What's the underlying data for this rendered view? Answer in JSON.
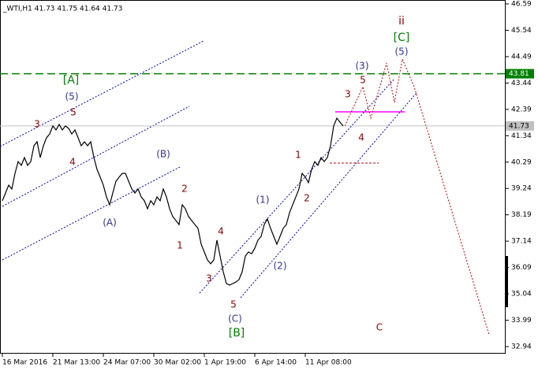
{
  "chart_data": {
    "type": "line",
    "title": "_WTI,H1  41.73 41.75 41.64 41.73",
    "categories": [
      "16 Mar 2016",
      null,
      null,
      null,
      null,
      null,
      null,
      null,
      null,
      null,
      null,
      null,
      null,
      null,
      null,
      null,
      "21 Mar 13:00",
      null,
      null,
      null,
      null,
      null,
      null,
      null,
      null,
      null,
      null,
      null,
      null,
      null,
      null,
      null,
      "24 Mar 07:00",
      null,
      null,
      null,
      null,
      null,
      null,
      null,
      null,
      null,
      null,
      null,
      null,
      null,
      null,
      null,
      "30 Mar 02:00",
      null,
      null,
      null,
      null,
      null,
      null,
      null,
      null,
      null,
      null,
      null,
      null,
      null,
      null,
      null,
      "1 Apr 19:00",
      null,
      null,
      null,
      null,
      null,
      null,
      null,
      null,
      null,
      null,
      null,
      null,
      null,
      null,
      null,
      "6 Apr 14:00",
      null,
      null,
      null,
      null,
      null,
      null,
      null,
      null,
      null,
      null,
      null,
      null,
      null,
      null,
      null,
      "11 Apr 08:00",
      null,
      null,
      null,
      null,
      null,
      null,
      null,
      null,
      null,
      null,
      null,
      null
    ],
    "values": [
      38.75,
      39.06,
      39.37,
      39.22,
      39.84,
      40.31,
      40.16,
      40.47,
      40.16,
      40.31,
      40.94,
      41.1,
      40.47,
      40.94,
      41.26,
      41.41,
      41.73,
      41.57,
      41.79,
      41.57,
      41.73,
      41.63,
      41.41,
      41.57,
      41.26,
      40.94,
      41.1,
      40.94,
      41.1,
      40.47,
      40.0,
      39.69,
      39.37,
      38.9,
      38.59,
      39.06,
      39.53,
      39.69,
      39.84,
      39.84,
      39.53,
      39.22,
      39.06,
      39.22,
      38.9,
      38.75,
      38.43,
      38.75,
      38.59,
      38.9,
      38.75,
      39.22,
      38.9,
      38.43,
      38.12,
      37.96,
      37.8,
      38.59,
      38.43,
      38.12,
      37.96,
      37.8,
      37.65,
      37.02,
      36.71,
      36.39,
      36.24,
      36.39,
      37.18,
      36.55,
      35.92,
      35.45,
      35.39,
      35.45,
      35.51,
      35.61,
      35.92,
      36.55,
      36.71,
      36.64,
      36.86,
      37.18,
      37.33,
      37.8,
      38.02,
      37.65,
      37.33,
      37.02,
      37.33,
      37.65,
      37.8,
      38.27,
      38.59,
      38.9,
      39.22,
      39.84,
      39.69,
      39.47,
      40.0,
      40.31,
      40.16,
      40.47,
      40.31,
      40.47,
      40.94,
      41.73,
      42.04,
      41.88,
      41.73
    ],
    "color": "#000000",
    "ylim": [
      32.94,
      46.59
    ],
    "yticks": [
      46.59,
      45.54,
      44.49,
      43.44,
      42.39,
      41.34,
      40.29,
      39.24,
      38.19,
      37.14,
      36.09,
      35.04,
      33.99,
      32.94
    ],
    "hlines": [
      {
        "value": 43.81,
        "color": "#008000"
      },
      {
        "value": 41.73,
        "color": "#c0c0c0"
      }
    ],
    "annotations": [
      {
        "text": "[A]",
        "color": "#008000"
      },
      {
        "text": "(5)",
        "color": "#333399"
      },
      {
        "text": "5",
        "color": "#8b0000"
      },
      {
        "text": "3",
        "color": "#8b0000"
      },
      {
        "text": "4",
        "color": "#8b0000"
      },
      {
        "text": "(A)",
        "color": "#333399"
      },
      {
        "text": "(B)",
        "color": "#333399"
      },
      {
        "text": "2",
        "color": "#8b0000"
      },
      {
        "text": "1",
        "color": "#8b0000"
      },
      {
        "text": "4",
        "color": "#8b0000"
      },
      {
        "text": "3",
        "color": "#8b0000"
      },
      {
        "text": "5",
        "color": "#8b0000"
      },
      {
        "text": "(C)",
        "color": "#333399"
      },
      {
        "text": "[B]",
        "color": "#008000"
      },
      {
        "text": "(1)",
        "color": "#333399"
      },
      {
        "text": "(2)",
        "color": "#333399"
      },
      {
        "text": "1",
        "color": "#8b0000"
      },
      {
        "text": "2",
        "color": "#8b0000"
      },
      {
        "text": "3",
        "color": "#8b0000"
      },
      {
        "text": "4",
        "color": "#8b0000"
      },
      {
        "text": "5",
        "color": "#8b0000"
      },
      {
        "text": "(3)",
        "color": "#333399"
      },
      {
        "text": "(5)",
        "color": "#333399"
      },
      {
        "text": "[C]",
        "color": "#008000"
      },
      {
        "text": "ii",
        "color": "#8b0000"
      },
      {
        "text": "C",
        "color": "#8b0000"
      }
    ]
  }
}
